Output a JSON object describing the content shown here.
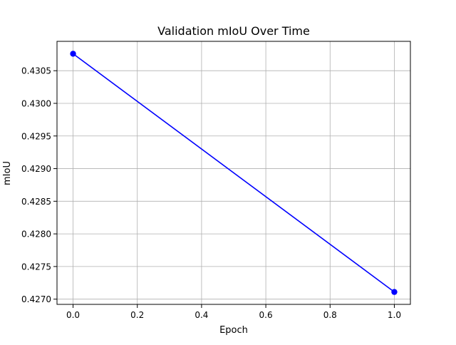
{
  "chart_data": {
    "type": "line",
    "title": "Validation mIoU Over Time",
    "xlabel": "Epoch",
    "ylabel": "mIoU",
    "xlim": [
      -0.05,
      1.05
    ],
    "ylim": [
      0.42692,
      0.43095
    ],
    "x_ticks": [
      0.0,
      0.2,
      0.4,
      0.6,
      0.8,
      1.0
    ],
    "x_tick_labels": [
      "0.0",
      "0.2",
      "0.4",
      "0.6",
      "0.8",
      "1.0"
    ],
    "y_ticks": [
      0.427,
      0.4275,
      0.428,
      0.4285,
      0.429,
      0.4295,
      0.43,
      0.4305
    ],
    "y_tick_labels": [
      "0.4270",
      "0.4275",
      "0.4280",
      "0.4285",
      "0.4290",
      "0.4295",
      "0.4300",
      "0.4305"
    ],
    "grid": true,
    "series": [
      {
        "x": [
          0,
          1
        ],
        "y": [
          0.43076,
          0.42711
        ],
        "color": "#0000ff",
        "marker": "circle"
      }
    ]
  }
}
